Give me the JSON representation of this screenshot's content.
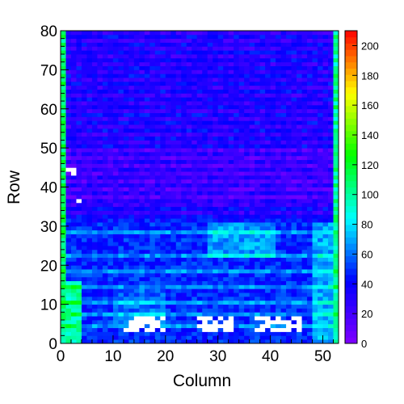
{
  "chart_data": {
    "type": "heatmap",
    "title": "",
    "xlabel": "Column",
    "ylabel": "Row",
    "xlim": [
      0,
      53
    ],
    "ylim": [
      0,
      80
    ],
    "x_ticks": [
      "0",
      "10",
      "20",
      "30",
      "40",
      "50"
    ],
    "y_ticks": [
      "0",
      "10",
      "20",
      "30",
      "40",
      "50",
      "60",
      "70",
      "80"
    ],
    "colorbar": {
      "range": [
        0,
        210
      ],
      "ticks": [
        "0",
        "20",
        "40",
        "60",
        "80",
        "100",
        "120",
        "140",
        "160",
        "180",
        "200"
      ],
      "palette": [
        "#8000ff",
        "#0000ff",
        "#00ffff",
        "#00ff00",
        "#ffff00",
        "#ff0000"
      ]
    },
    "grid_columns": 53,
    "grid_rows": 80,
    "regions": [
      {
        "cols": [
          0,
          53
        ],
        "rows": [
          0,
          80
        ],
        "value": 25,
        "note": "baseline"
      },
      {
        "cols": [
          0,
          53
        ],
        "rows": [
          31,
          80
        ],
        "value": 25
      },
      {
        "cols": [
          0,
          53
        ],
        "rows": [
          36,
          50
        ],
        "value": 15
      },
      {
        "cols": [
          0,
          53
        ],
        "rows": [
          0,
          31
        ],
        "value": 48
      },
      {
        "cols": [
          0,
          4
        ],
        "rows": [
          0,
          16
        ],
        "value": 98
      },
      {
        "cols": [
          28,
          41
        ],
        "rows": [
          22,
          31
        ],
        "value": 68
      },
      {
        "cols": [
          10,
          20
        ],
        "rows": [
          5,
          14
        ],
        "value": 58
      },
      {
        "cols": [
          48,
          53
        ],
        "rows": [
          0,
          31
        ],
        "value": 70
      },
      {
        "cols": [
          52,
          53
        ],
        "rows": [
          0,
          80
        ],
        "value": 95
      },
      {
        "cols": [
          0,
          1
        ],
        "rows": [
          0,
          80
        ],
        "value": 105
      }
    ],
    "stripe_rows": [
      31,
      28,
      22,
      18,
      14,
      10,
      7,
      4
    ],
    "blank_regions": [
      {
        "cols": [
          12,
          20
        ],
        "rows": [
          3,
          7
        ]
      },
      {
        "cols": [
          25,
          33
        ],
        "rows": [
          3,
          7
        ]
      },
      {
        "cols": [
          37,
          46
        ],
        "rows": [
          3,
          7
        ]
      },
      {
        "cols": [
          1,
          4
        ],
        "rows": [
          43,
          45
        ]
      },
      {
        "cols": [
          3,
          4
        ],
        "rows": [
          36,
          38
        ]
      }
    ]
  }
}
